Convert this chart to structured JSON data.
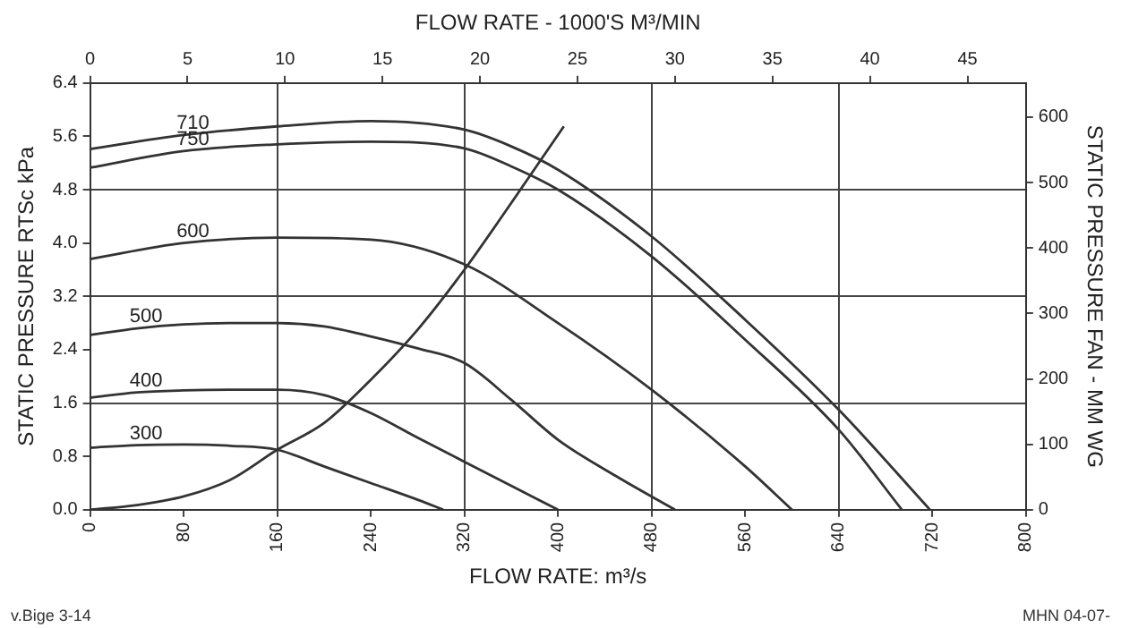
{
  "chart_data": {
    "type": "line",
    "xlabel": "FLOW RATE: m³/s",
    "x2label": "FLOW RATE - 1000'S M³/MIN",
    "ylabel": "STATIC PRESSURE RTSc kPa",
    "y2label": "STATIC PRESSURE FAN - MM WG",
    "xlim": [
      0,
      800
    ],
    "xticks": [
      0,
      80,
      160,
      240,
      320,
      400,
      480,
      560,
      640,
      720,
      800
    ],
    "x2lim": [
      0,
      48
    ],
    "x2ticks": [
      0,
      5,
      10,
      15,
      20,
      25,
      30,
      35,
      40,
      45
    ],
    "ylim": [
      0,
      6.4
    ],
    "yticks": [
      {
        "value": 0,
        "label": "0.0"
      },
      0.8,
      1.6,
      2.4,
      3.2,
      {
        "value": 4,
        "label": "4.0"
      },
      4.8,
      5.6,
      6.4
    ],
    "y2lim": [
      0,
      652
    ],
    "y2ticks": [
      0,
      100,
      200,
      300,
      400,
      500,
      600
    ],
    "grid": true,
    "legend": false,
    "marker": "none",
    "line_style": "solid",
    "series": [
      {
        "name": "300",
        "color": "#333333",
        "x": [
          0,
          40,
          80,
          120,
          160,
          200,
          240,
          280,
          302
        ],
        "values": [
          0.93,
          0.97,
          0.98,
          0.96,
          0.9,
          0.65,
          0.4,
          0.15,
          0
        ]
      },
      {
        "name": "400",
        "color": "#333333",
        "x": [
          0,
          40,
          80,
          120,
          160,
          200,
          240,
          280,
          320,
          360,
          400
        ],
        "values": [
          1.68,
          1.76,
          1.79,
          1.8,
          1.8,
          1.72,
          1.45,
          1.08,
          0.72,
          0.36,
          0
        ]
      },
      {
        "name": "500",
        "color": "#333333",
        "x": [
          0,
          40,
          80,
          120,
          160,
          200,
          240,
          280,
          320,
          360,
          400,
          450,
          500
        ],
        "values": [
          2.62,
          2.72,
          2.78,
          2.8,
          2.8,
          2.75,
          2.6,
          2.42,
          2.2,
          1.65,
          1.05,
          0.5,
          0
        ]
      },
      {
        "name": "600",
        "color": "#333333",
        "x": [
          0,
          80,
          160,
          240,
          320,
          400,
          480,
          560,
          600
        ],
        "values": [
          3.76,
          4.0,
          4.08,
          4.05,
          3.68,
          2.8,
          1.8,
          0.65,
          0
        ]
      },
      {
        "name": "750",
        "color": "#333333",
        "x": [
          0,
          80,
          160,
          240,
          320,
          360,
          400,
          480,
          560,
          640,
          694
        ],
        "values": [
          5.13,
          5.38,
          5.48,
          5.52,
          5.42,
          5.15,
          4.8,
          3.8,
          2.55,
          1.2,
          0
        ]
      },
      {
        "name": "710",
        "color": "#333333",
        "x": [
          0,
          80,
          160,
          240,
          320,
          360,
          400,
          480,
          560,
          640,
          718
        ],
        "values": [
          5.41,
          5.62,
          5.75,
          5.83,
          5.7,
          5.45,
          5.1,
          4.1,
          2.85,
          1.5,
          0
        ]
      },
      {
        "color": "#333333",
        "x": [
          0,
          40,
          80,
          120,
          160,
          200,
          240,
          280,
          320,
          360,
          405
        ],
        "values": [
          0,
          0.07,
          0.2,
          0.45,
          0.9,
          1.3,
          1.95,
          2.7,
          3.6,
          4.6,
          5.75
        ]
      }
    ],
    "annotations": [
      "v.Bige 3-14",
      "MHN 04-07-"
    ]
  }
}
